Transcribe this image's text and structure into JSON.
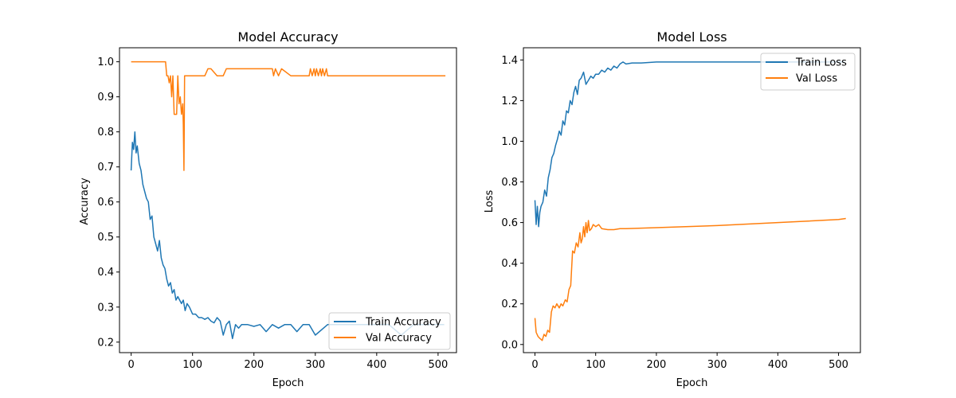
{
  "colors": {
    "train": "#1f77b4",
    "val": "#ff7f0e"
  },
  "chart_data": [
    {
      "type": "line",
      "title": "Model Accuracy",
      "xlabel": "Epoch",
      "ylabel": "Accuracy",
      "xlim": [
        -19,
        530
      ],
      "ylim": [
        0.17,
        1.04
      ],
      "xticks": [
        0,
        100,
        200,
        300,
        400,
        500
      ],
      "yticks": [
        0.2,
        0.3,
        0.4,
        0.5,
        0.6,
        0.7,
        0.8,
        0.9,
        1.0
      ],
      "ytick_labels": [
        "0.2",
        "0.3",
        "0.4",
        "0.5",
        "0.6",
        "0.7",
        "0.8",
        "0.9",
        "1.0"
      ],
      "legend": "lower-right",
      "series": [
        {
          "name": "Train Accuracy",
          "color": "#1f77b4",
          "x": [
            0,
            2,
            4,
            6,
            8,
            10,
            13,
            16,
            19,
            22,
            25,
            28,
            31,
            34,
            37,
            40,
            43,
            46,
            49,
            52,
            55,
            58,
            61,
            64,
            67,
            70,
            73,
            76,
            79,
            82,
            85,
            88,
            91,
            95,
            100,
            105,
            110,
            115,
            120,
            125,
            130,
            135,
            140,
            145,
            150,
            155,
            160,
            165,
            170,
            175,
            180,
            190,
            200,
            210,
            220,
            230,
            240,
            250,
            260,
            270,
            280,
            290,
            300,
            320,
            340,
            360,
            380,
            400,
            420,
            440,
            460,
            480,
            500,
            510
          ],
          "y": [
            0.69,
            0.77,
            0.75,
            0.8,
            0.74,
            0.76,
            0.71,
            0.69,
            0.65,
            0.63,
            0.61,
            0.6,
            0.55,
            0.56,
            0.5,
            0.48,
            0.46,
            0.49,
            0.44,
            0.42,
            0.41,
            0.38,
            0.36,
            0.37,
            0.34,
            0.35,
            0.32,
            0.33,
            0.32,
            0.31,
            0.32,
            0.29,
            0.31,
            0.3,
            0.28,
            0.28,
            0.27,
            0.27,
            0.265,
            0.27,
            0.26,
            0.255,
            0.27,
            0.26,
            0.22,
            0.25,
            0.26,
            0.21,
            0.25,
            0.24,
            0.25,
            0.25,
            0.245,
            0.25,
            0.23,
            0.25,
            0.24,
            0.25,
            0.25,
            0.23,
            0.25,
            0.25,
            0.22,
            0.25,
            0.25,
            0.25,
            0.25,
            0.25,
            0.25,
            0.22,
            0.25,
            0.25,
            0.25,
            0.25
          ]
        },
        {
          "name": "Val Accuracy",
          "color": "#ff7f0e",
          "x": [
            0,
            10,
            20,
            30,
            40,
            50,
            56,
            58,
            60,
            62,
            64,
            66,
            68,
            70,
            72,
            74,
            76,
            78,
            80,
            82,
            84,
            85,
            86,
            87,
            88,
            90,
            95,
            100,
            110,
            120,
            125,
            130,
            140,
            150,
            155,
            160,
            180,
            200,
            220,
            230,
            232,
            235,
            240,
            245,
            260,
            280,
            290,
            292,
            295,
            298,
            300,
            302,
            305,
            308,
            310,
            312,
            315,
            318,
            320,
            340,
            400,
            450,
            512
          ],
          "y": [
            1.0,
            1.0,
            1.0,
            1.0,
            1.0,
            1.0,
            1.0,
            0.96,
            0.96,
            0.94,
            0.96,
            0.9,
            0.96,
            0.85,
            0.85,
            0.85,
            0.96,
            0.88,
            0.9,
            0.85,
            0.88,
            0.82,
            0.69,
            0.96,
            0.96,
            0.96,
            0.96,
            0.96,
            0.96,
            0.96,
            0.98,
            0.98,
            0.96,
            0.96,
            0.98,
            0.98,
            0.98,
            0.98,
            0.98,
            0.98,
            0.96,
            0.98,
            0.96,
            0.98,
            0.96,
            0.96,
            0.96,
            0.98,
            0.96,
            0.98,
            0.96,
            0.98,
            0.96,
            0.98,
            0.96,
            0.98,
            0.96,
            0.98,
            0.96,
            0.96,
            0.96,
            0.96,
            0.96
          ]
        }
      ]
    },
    {
      "type": "line",
      "title": "Model Loss",
      "xlabel": "Epoch",
      "ylabel": "Loss",
      "xlim": [
        -19,
        536
      ],
      "ylim": [
        -0.04,
        1.46
      ],
      "xticks": [
        0,
        100,
        200,
        300,
        400,
        500
      ],
      "yticks": [
        0.0,
        0.2,
        0.4,
        0.6,
        0.8,
        1.0,
        1.2,
        1.4
      ],
      "ytick_labels": [
        "0.0",
        "0.2",
        "0.4",
        "0.6",
        "0.8",
        "1.0",
        "1.2",
        "1.4"
      ],
      "legend": "upper-right",
      "series": [
        {
          "name": "Train Loss",
          "color": "#1f77b4",
          "x": [
            0,
            2,
            4,
            6,
            8,
            10,
            13,
            16,
            19,
            22,
            25,
            28,
            31,
            34,
            37,
            40,
            43,
            46,
            49,
            52,
            55,
            58,
            61,
            64,
            67,
            70,
            73,
            76,
            80,
            84,
            88,
            92,
            96,
            100,
            105,
            110,
            115,
            120,
            125,
            130,
            135,
            140,
            145,
            150,
            160,
            175,
            200,
            250,
            300,
            350,
            400,
            450,
            510
          ],
          "y": [
            0.71,
            0.59,
            0.68,
            0.58,
            0.65,
            0.68,
            0.7,
            0.76,
            0.73,
            0.82,
            0.86,
            0.92,
            0.94,
            0.98,
            1.01,
            1.05,
            1.03,
            1.1,
            1.08,
            1.15,
            1.14,
            1.2,
            1.18,
            1.24,
            1.27,
            1.23,
            1.3,
            1.31,
            1.34,
            1.28,
            1.3,
            1.32,
            1.31,
            1.33,
            1.33,
            1.35,
            1.34,
            1.36,
            1.35,
            1.37,
            1.36,
            1.38,
            1.39,
            1.38,
            1.385,
            1.385,
            1.39,
            1.39,
            1.39,
            1.39,
            1.39,
            1.39,
            1.39
          ]
        },
        {
          "name": "Val Loss",
          "color": "#ff7f0e",
          "x": [
            0,
            2,
            5,
            8,
            12,
            15,
            18,
            21,
            24,
            27,
            30,
            33,
            36,
            40,
            43,
            46,
            50,
            53,
            56,
            59,
            62,
            65,
            68,
            71,
            74,
            76,
            78,
            80,
            82,
            84,
            86,
            88,
            90,
            93,
            96,
            100,
            105,
            110,
            120,
            130,
            140,
            150,
            200,
            300,
            400,
            500,
            512
          ],
          "y": [
            0.13,
            0.06,
            0.04,
            0.03,
            0.02,
            0.05,
            0.04,
            0.07,
            0.06,
            0.16,
            0.19,
            0.18,
            0.2,
            0.18,
            0.2,
            0.19,
            0.22,
            0.21,
            0.27,
            0.29,
            0.46,
            0.45,
            0.5,
            0.48,
            0.55,
            0.5,
            0.52,
            0.58,
            0.53,
            0.6,
            0.55,
            0.61,
            0.56,
            0.57,
            0.59,
            0.58,
            0.59,
            0.57,
            0.565,
            0.565,
            0.57,
            0.57,
            0.575,
            0.585,
            0.6,
            0.615,
            0.62
          ]
        }
      ]
    }
  ]
}
